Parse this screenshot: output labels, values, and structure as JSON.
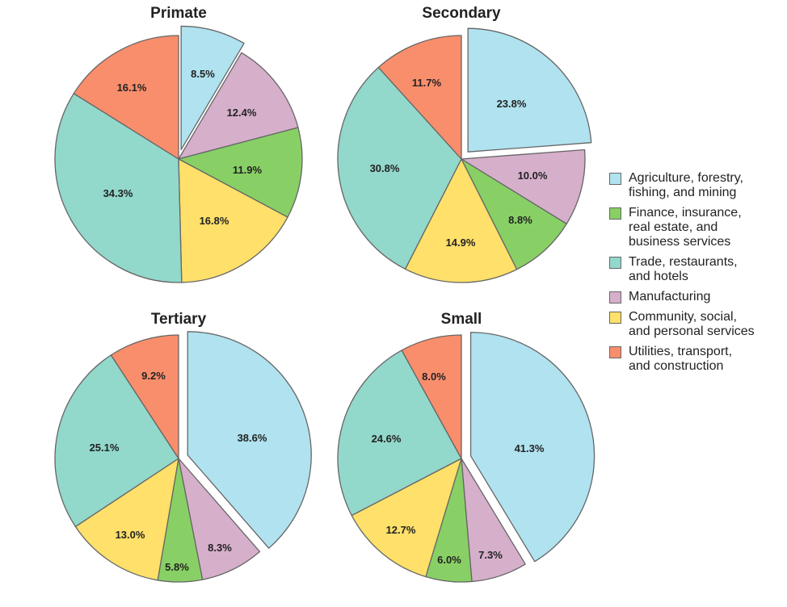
{
  "chart_data": {
    "type": "pie",
    "legend": {
      "placement": "right",
      "entries": [
        {
          "key": "agriculture",
          "label": "Agriculture, forestry,\nfishing, and mining",
          "color": "#b0e2ef"
        },
        {
          "key": "finance",
          "label": "Finance, insurance,\nreal estate, and\nbusiness services",
          "color": "#88d065"
        },
        {
          "key": "trade",
          "label": "Trade, restaurants,\nand hotels",
          "color": "#92d8cb"
        },
        {
          "key": "manufacturing",
          "label": "Manufacturing",
          "color": "#d6afcb"
        },
        {
          "key": "community",
          "label": "Community, social,\nand personal services",
          "color": "#fee06a"
        },
        {
          "key": "utilities",
          "label": "Utilities, transport,\nand construction",
          "color": "#f98e6c"
        }
      ]
    },
    "charts": [
      {
        "title": "Primate",
        "exploded": "agriculture",
        "slices": [
          {
            "key": "agriculture",
            "value": 8.5,
            "label": "8.5%"
          },
          {
            "key": "manufacturing",
            "value": 12.4,
            "label": "12.4%"
          },
          {
            "key": "finance",
            "value": 11.9,
            "label": "11.9%"
          },
          {
            "key": "community",
            "value": 16.8,
            "label": "16.8%"
          },
          {
            "key": "trade",
            "value": 34.3,
            "label": "34.3%"
          },
          {
            "key": "utilities",
            "value": 16.1,
            "label": "16.1%"
          }
        ]
      },
      {
        "title": "Secondary",
        "exploded": "agriculture",
        "slices": [
          {
            "key": "agriculture",
            "value": 23.8,
            "label": "23.8%"
          },
          {
            "key": "manufacturing",
            "value": 10.0,
            "label": "10.0%"
          },
          {
            "key": "finance",
            "value": 8.8,
            "label": "8.8%"
          },
          {
            "key": "community",
            "value": 14.9,
            "label": "14.9%"
          },
          {
            "key": "trade",
            "value": 30.8,
            "label": "30.8%"
          },
          {
            "key": "utilities",
            "value": 11.7,
            "label": "11.7%"
          }
        ]
      },
      {
        "title": "Tertiary",
        "exploded": "agriculture",
        "slices": [
          {
            "key": "agriculture",
            "value": 38.6,
            "label": "38.6%"
          },
          {
            "key": "manufacturing",
            "value": 8.3,
            "label": "8.3%"
          },
          {
            "key": "finance",
            "value": 5.8,
            "label": "5.8%"
          },
          {
            "key": "community",
            "value": 13.0,
            "label": "13.0%"
          },
          {
            "key": "trade",
            "value": 25.1,
            "label": "25.1%"
          },
          {
            "key": "utilities",
            "value": 9.2,
            "label": "9.2%"
          }
        ]
      },
      {
        "title": "Small",
        "exploded": "agriculture",
        "slices": [
          {
            "key": "agriculture",
            "value": 41.3,
            "label": "41.3%"
          },
          {
            "key": "manufacturing",
            "value": 7.3,
            "label": "7.3%"
          },
          {
            "key": "finance",
            "value": 6.0,
            "label": "6.0%"
          },
          {
            "key": "community",
            "value": 12.7,
            "label": "12.7%"
          },
          {
            "key": "trade",
            "value": 24.6,
            "label": "24.6%"
          },
          {
            "key": "utilities",
            "value": 8.0,
            "label": "8.0%"
          }
        ]
      }
    ]
  }
}
